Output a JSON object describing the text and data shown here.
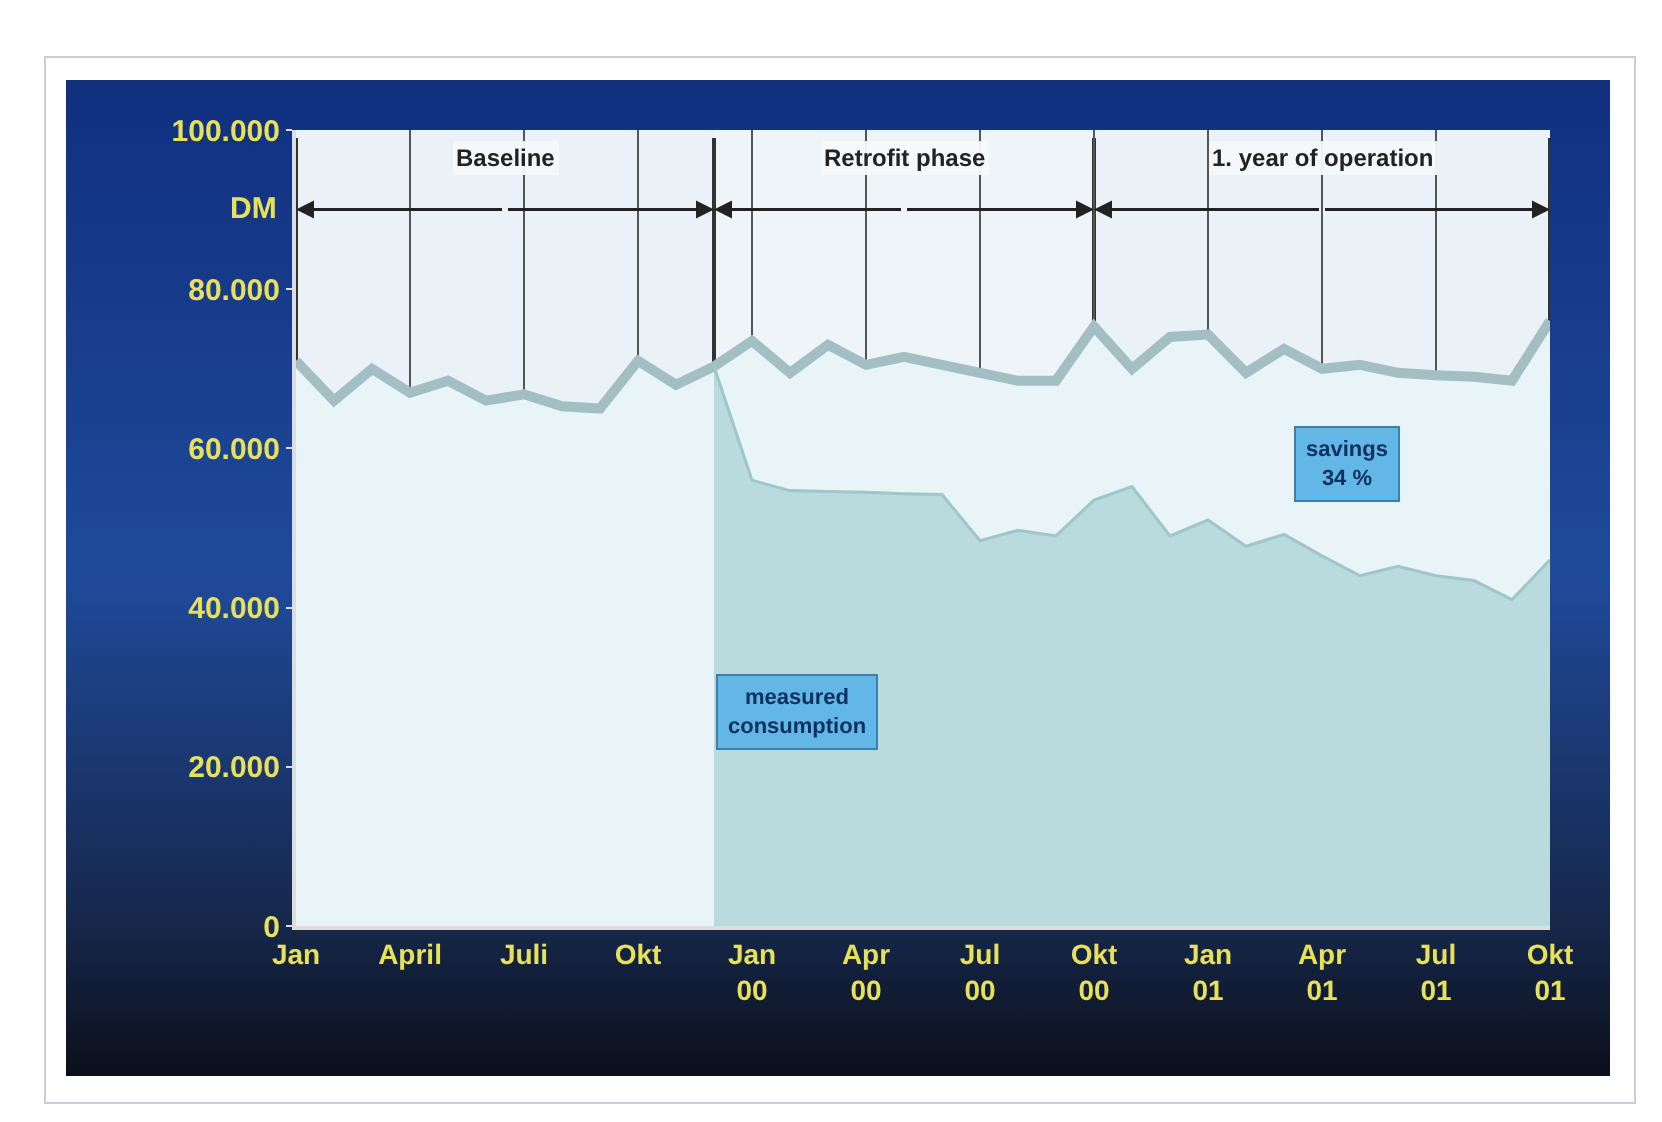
{
  "chart_data": {
    "type": "area",
    "ylabel": "DM",
    "categories": [
      "Jan",
      null,
      null,
      "April",
      null,
      null,
      "Juli",
      null,
      null,
      "Okt",
      null,
      null,
      "Jan 00",
      null,
      null,
      "Apr 00",
      null,
      null,
      "Jul 00",
      null,
      null,
      "Okt 00",
      null,
      null,
      "Jan 01",
      null,
      null,
      "Apr 01",
      null,
      null,
      "Jul 01",
      null,
      null,
      "Okt 01"
    ],
    "series": [
      {
        "color": "#a3bfc4",
        "values": [
          71000,
          66000,
          70000,
          67000,
          68500,
          66000,
          66800,
          65300,
          65000,
          71000,
          68000,
          70300,
          73500,
          69500,
          73000,
          70500,
          71500,
          70500,
          69500,
          68500,
          68500,
          75300,
          70000,
          74000,
          74300,
          69500,
          72500,
          70000,
          70500,
          69500,
          69200,
          69000,
          68500,
          76000
        ]
      },
      {
        "color": "#9fc6c8",
        "values": [
          null,
          null,
          null,
          null,
          null,
          null,
          null,
          null,
          null,
          null,
          null,
          70300,
          56000,
          54700,
          54600,
          54500,
          54300,
          54200,
          48400,
          49700,
          49000,
          53500,
          55200,
          49000,
          51000,
          47700,
          49200,
          46500,
          44000,
          45200,
          44000,
          43400,
          41000,
          46000
        ]
      }
    ],
    "ylim": [
      0,
      100000
    ],
    "yticks": [
      0,
      {
        "value": 20000,
        "label": "20.000"
      },
      {
        "value": 40000,
        "label": "40.000"
      },
      {
        "value": 60000,
        "label": "60.000"
      },
      {
        "value": 80000,
        "label": "80.000"
      },
      {
        "value": 100000,
        "label": "100.000"
      }
    ],
    "annotations": [
      "Baseline",
      "Retrofit phase",
      "1. year of operation",
      "measured consumption",
      "savings 34 %"
    ],
    "grid": "x",
    "marker": "none",
    "line_style": "solid"
  }
}
